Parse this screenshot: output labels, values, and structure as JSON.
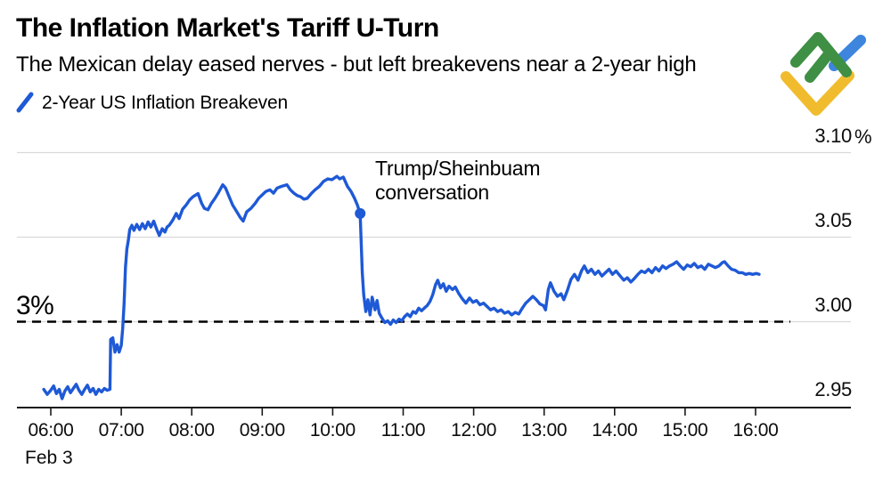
{
  "header": {
    "title": "The Inflation Market's Tariff U-Turn",
    "subtitle": "The Mexican delay eased nerves - but left breakevens near a 2-year high"
  },
  "legend": {
    "series_label": "2-Year US Inflation Breakeven",
    "slash_color": "#1e59d6"
  },
  "logo": {
    "green": "#3f8f44",
    "blue": "#3d85dd",
    "yellow": "#f0bc2e"
  },
  "annotation": {
    "line1": "Trump/Sheinbuam",
    "line2": "conversation"
  },
  "chart_data": {
    "type": "line",
    "title": "The Inflation Market's Tariff U-Turn",
    "subtitle": "The Mexican delay eased nerves - but left breakevens near a 2-year high",
    "legend_position": "top-left",
    "grid": "horizontal",
    "xlim_hours": [
      5.85,
      16.35
    ],
    "ylim": [
      2.945,
      3.11
    ],
    "x_axis": {
      "date_label": "Feb 3",
      "tick_hours": [
        6,
        7,
        8,
        9,
        10,
        11,
        12,
        13,
        14,
        15,
        16
      ],
      "tick_labels": [
        "06:00",
        "07:00",
        "08:00",
        "09:00",
        "10:00",
        "11:00",
        "12:00",
        "13:00",
        "14:00",
        "15:00",
        "16:00"
      ]
    },
    "y_axis": {
      "side": "right",
      "unit": "%",
      "ticks": [
        {
          "label": "3.10",
          "value": 3.1,
          "gridline": true
        },
        {
          "label": "3.05",
          "value": 3.05,
          "gridline": true
        },
        {
          "label": "3.00",
          "value": 3.0,
          "gridline": true
        },
        {
          "label": "2.95",
          "value": 2.95,
          "gridline": false
        }
      ]
    },
    "reference_line": {
      "value": 3.0,
      "label": "3%",
      "style": "dashed",
      "color": "#000000"
    },
    "marker": {
      "t": 10.39,
      "value": 3.064
    },
    "series": [
      {
        "name": "2-Year US Inflation Breakeven",
        "color": "#1e59d6",
        "points": [
          [
            5.9,
            2.96
          ],
          [
            5.95,
            2.957
          ],
          [
            6.0,
            2.9595
          ],
          [
            6.04,
            2.962
          ],
          [
            6.08,
            2.9575
          ],
          [
            6.12,
            2.96
          ],
          [
            6.16,
            2.9545
          ],
          [
            6.2,
            2.959
          ],
          [
            6.24,
            2.9615
          ],
          [
            6.28,
            2.958
          ],
          [
            6.32,
            2.9605
          ],
          [
            6.36,
            2.963
          ],
          [
            6.4,
            2.9595
          ],
          [
            6.44,
            2.957
          ],
          [
            6.48,
            2.96
          ],
          [
            6.52,
            2.9625
          ],
          [
            6.56,
            2.9585
          ],
          [
            6.6,
            2.9605
          ],
          [
            6.64,
            2.957
          ],
          [
            6.68,
            2.96
          ],
          [
            6.72,
            2.9585
          ],
          [
            6.76,
            2.9605
          ],
          [
            6.8,
            2.9595
          ],
          [
            6.84,
            2.96
          ],
          [
            6.85,
            2.9895
          ],
          [
            6.88,
            2.9905
          ],
          [
            6.91,
            2.982
          ],
          [
            6.94,
            2.9865
          ],
          [
            6.97,
            2.982
          ],
          [
            7.0,
            2.986
          ],
          [
            7.02,
            2.996
          ],
          [
            7.04,
            3.011
          ],
          [
            7.06,
            3.032
          ],
          [
            7.08,
            3.043
          ],
          [
            7.1,
            3.048
          ],
          [
            7.12,
            3.0545
          ],
          [
            7.15,
            3.057
          ],
          [
            7.18,
            3.054
          ],
          [
            7.22,
            3.0575
          ],
          [
            7.26,
            3.0545
          ],
          [
            7.3,
            3.058
          ],
          [
            7.34,
            3.055
          ],
          [
            7.38,
            3.059
          ],
          [
            7.42,
            3.056
          ],
          [
            7.46,
            3.0595
          ],
          [
            7.5,
            3.055
          ],
          [
            7.54,
            3.051
          ],
          [
            7.58,
            3.055
          ],
          [
            7.62,
            3.053
          ],
          [
            7.65,
            3.056
          ],
          [
            7.68,
            3.057
          ],
          [
            7.73,
            3.06
          ],
          [
            7.78,
            3.064
          ],
          [
            7.82,
            3.061
          ],
          [
            7.87,
            3.0665
          ],
          [
            7.92,
            3.069
          ],
          [
            7.97,
            3.072
          ],
          [
            8.02,
            3.074
          ],
          [
            8.09,
            3.0758
          ],
          [
            8.14,
            3.07
          ],
          [
            8.18,
            3.067
          ],
          [
            8.23,
            3.0662
          ],
          [
            8.28,
            3.07
          ],
          [
            8.33,
            3.073
          ],
          [
            8.38,
            3.0765
          ],
          [
            8.44,
            3.081
          ],
          [
            8.48,
            3.079
          ],
          [
            8.53,
            3.074
          ],
          [
            8.58,
            3.069
          ],
          [
            8.64,
            3.065
          ],
          [
            8.69,
            3.0615
          ],
          [
            8.73,
            3.0595
          ],
          [
            8.78,
            3.065
          ],
          [
            8.84,
            3.067
          ],
          [
            8.9,
            3.07
          ],
          [
            8.95,
            3.073
          ],
          [
            9.0,
            3.075
          ],
          [
            9.05,
            3.077
          ],
          [
            9.11,
            3.078
          ],
          [
            9.16,
            3.076
          ],
          [
            9.21,
            3.079
          ],
          [
            9.27,
            3.08
          ],
          [
            9.35,
            3.081
          ],
          [
            9.4,
            3.078
          ],
          [
            9.45,
            3.076
          ],
          [
            9.5,
            3.0745
          ],
          [
            9.54,
            3.074
          ],
          [
            9.59,
            3.0725
          ],
          [
            9.64,
            3.073
          ],
          [
            9.7,
            3.076
          ],
          [
            9.75,
            3.078
          ],
          [
            9.81,
            3.08
          ],
          [
            9.87,
            3.083
          ],
          [
            9.93,
            3.0845
          ],
          [
            9.99,
            3.084
          ],
          [
            10.06,
            3.086
          ],
          [
            10.1,
            3.0845
          ],
          [
            10.15,
            3.0855
          ],
          [
            10.21,
            3.08
          ],
          [
            10.26,
            3.077
          ],
          [
            10.31,
            3.073
          ],
          [
            10.35,
            3.069
          ],
          [
            10.39,
            3.064
          ],
          [
            10.42,
            3.029
          ],
          [
            10.44,
            3.016
          ],
          [
            10.47,
            3.006
          ],
          [
            10.5,
            3.013
          ],
          [
            10.53,
            3.004
          ],
          [
            10.56,
            3.0145
          ],
          [
            10.6,
            3.007
          ],
          [
            10.63,
            3.0125
          ],
          [
            10.66,
            3.005
          ],
          [
            10.7,
            3.002
          ],
          [
            10.74,
            2.9995
          ],
          [
            10.78,
            3.0005
          ],
          [
            10.82,
            2.9985
          ],
          [
            10.86,
            3.001
          ],
          [
            10.9,
            2.9995
          ],
          [
            10.94,
            3.0015
          ],
          [
            10.98,
            3.0005
          ],
          [
            11.02,
            3.003
          ],
          [
            11.06,
            3.0045
          ],
          [
            11.1,
            3.003
          ],
          [
            11.14,
            3.006
          ],
          [
            11.18,
            3.005
          ],
          [
            11.22,
            3.008
          ],
          [
            11.26,
            3.0065
          ],
          [
            11.3,
            3.008
          ],
          [
            11.34,
            3.0095
          ],
          [
            11.38,
            3.012
          ],
          [
            11.42,
            3.016
          ],
          [
            11.46,
            3.022
          ],
          [
            11.49,
            3.0245
          ],
          [
            11.53,
            3.02
          ],
          [
            11.57,
            3.0225
          ],
          [
            11.61,
            3.018
          ],
          [
            11.65,
            3.021
          ],
          [
            11.7,
            3.019
          ],
          [
            11.74,
            3.0205
          ],
          [
            11.79,
            3.0165
          ],
          [
            11.84,
            3.0135
          ],
          [
            11.89,
            3.011
          ],
          [
            11.94,
            3.014
          ],
          [
            11.99,
            3.0115
          ],
          [
            12.04,
            3.0125
          ],
          [
            12.09,
            3.01
          ],
          [
            12.14,
            3.011
          ],
          [
            12.19,
            3.009
          ],
          [
            12.24,
            3.007
          ],
          [
            12.29,
            3.008
          ],
          [
            12.34,
            3.006
          ],
          [
            12.39,
            3.007
          ],
          [
            12.44,
            3.005
          ],
          [
            12.49,
            3.006
          ],
          [
            12.54,
            3.004
          ],
          [
            12.59,
            3.0055
          ],
          [
            12.64,
            3.0045
          ],
          [
            12.69,
            3.008
          ],
          [
            12.74,
            3.011
          ],
          [
            12.79,
            3.013
          ],
          [
            12.84,
            3.015
          ],
          [
            12.89,
            3.013
          ],
          [
            12.94,
            3.0105
          ],
          [
            12.99,
            3.0095
          ],
          [
            13.02,
            3.007
          ],
          [
            13.06,
            3.019
          ],
          [
            13.09,
            3.023
          ],
          [
            13.14,
            3.018
          ],
          [
            13.19,
            3.015
          ],
          [
            13.24,
            3.0165
          ],
          [
            13.28,
            3.013
          ],
          [
            13.33,
            3.0185
          ],
          [
            13.38,
            3.025
          ],
          [
            13.43,
            3.028
          ],
          [
            13.48,
            3.0245
          ],
          [
            13.53,
            3.03
          ],
          [
            13.57,
            3.033
          ],
          [
            13.62,
            3.029
          ],
          [
            13.67,
            3.031
          ],
          [
            13.72,
            3.028
          ],
          [
            13.77,
            3.03
          ],
          [
            13.82,
            3.027
          ],
          [
            13.87,
            3.029
          ],
          [
            13.92,
            3.031
          ],
          [
            13.97,
            3.028
          ],
          [
            14.02,
            3.03
          ],
          [
            14.08,
            3.027
          ],
          [
            14.13,
            3.0245
          ],
          [
            14.18,
            3.026
          ],
          [
            14.23,
            3.0235
          ],
          [
            14.28,
            3.0255
          ],
          [
            14.33,
            3.028
          ],
          [
            14.38,
            3.03
          ],
          [
            14.43,
            3.029
          ],
          [
            14.48,
            3.031
          ],
          [
            14.53,
            3.029
          ],
          [
            14.58,
            3.032
          ],
          [
            14.63,
            3.03
          ],
          [
            14.68,
            3.033
          ],
          [
            14.73,
            3.0315
          ],
          [
            14.78,
            3.033
          ],
          [
            14.83,
            3.034
          ],
          [
            14.88,
            3.0355
          ],
          [
            14.93,
            3.033
          ],
          [
            14.98,
            3.031
          ],
          [
            15.03,
            3.0335
          ],
          [
            15.08,
            3.0325
          ],
          [
            15.13,
            3.0345
          ],
          [
            15.18,
            3.032
          ],
          [
            15.23,
            3.033
          ],
          [
            15.28,
            3.031
          ],
          [
            15.33,
            3.034
          ],
          [
            15.38,
            3.033
          ],
          [
            15.43,
            3.032
          ],
          [
            15.48,
            3.033
          ],
          [
            15.53,
            3.035
          ],
          [
            15.56,
            3.0355
          ],
          [
            15.61,
            3.033
          ],
          [
            15.66,
            3.031
          ],
          [
            15.71,
            3.0305
          ],
          [
            15.76,
            3.029
          ],
          [
            15.81,
            3.029
          ],
          [
            15.86,
            3.028
          ],
          [
            15.91,
            3.0285
          ],
          [
            15.96,
            3.028
          ],
          [
            16.01,
            3.0285
          ],
          [
            16.05,
            3.028
          ]
        ]
      }
    ]
  }
}
